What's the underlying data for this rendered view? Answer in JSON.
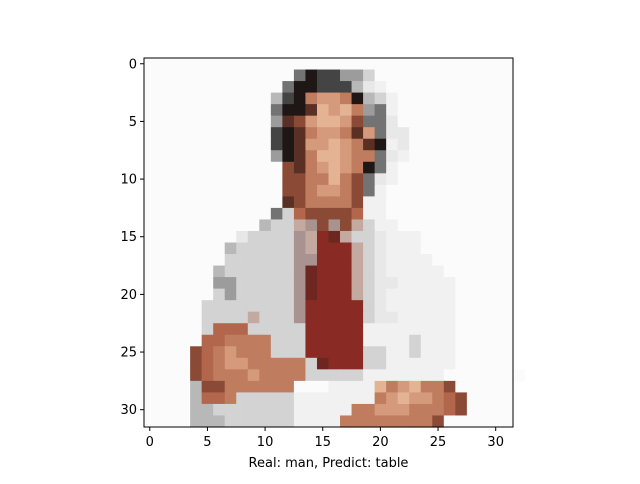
{
  "chart_data": {
    "type": "heatmap",
    "title": "",
    "xlabel": "Real: man, Predict: table",
    "ylabel": "",
    "xlim": [
      -0.5,
      31.5
    ],
    "ylim": [
      31.5,
      -0.5
    ],
    "x_ticks": [
      0,
      5,
      10,
      15,
      20,
      25,
      30
    ],
    "y_ticks": [
      0,
      5,
      10,
      15,
      20,
      25,
      30
    ],
    "x_tick_labels": [
      "0",
      "5",
      "10",
      "15",
      "20",
      "25",
      "30"
    ],
    "y_tick_labels": [
      "0",
      "5",
      "10",
      "15",
      "20",
      "25",
      "30"
    ],
    "grid": false,
    "image_size": [
      32,
      32
    ],
    "palette": {
      "0": "#fbfbfb",
      "1": "#f1f1f1",
      "2": "#e8e8e8",
      "3": "#d3d3d3",
      "4": "#b8b8b8",
      "5": "#9c9c9c",
      "6": "#737373",
      "7": "#444444",
      "8": "#1e1715",
      "9": "#5a2f24",
      "A": "#8a4a36",
      "B": "#bf7c5f",
      "C": "#d59a7c",
      "D": "#e3b394",
      "E": "#8a2a24",
      "F": "#6d2620",
      "G": "#b2674c",
      "H": "#c4a9a0",
      "I": "#a89390"
    },
    "pixels": [
      "00000000000000000000000000000000",
      "00000000000006877553000000000000",
      "00000000000068877742100000000000",
      "00000000000478BCCB84310000000000",
      "000000000006889DCDB5610000000000",
      "0000000000059ACDDCA6620000000000",
      "00000000000789BCCB9C622000000000",
      "00000000000789CCDCB9812000000000",
      "00000000000589BDDCBB621000000000",
      "000000000000A9BCDCB8610000000000",
      "000000000000AABBDBA6210000000000",
      "000000000000AABCCBA6100000000000",
      "0000000000009ABBBBA1100000000000",
      "0000000000063GAAAAG1100000000000",
      "0000000000433HIAIAH3110000000000",
      "0000000023333IHEFH33211100000000",
      "0000000433333IHEEEH3211100000000",
      "0000000333333IIEEEH3211110000000",
      "0000004333333IFEEEH3211111000000",
      "0000005533333IFEEEH3221111100000",
      "0000003533333IFEEEH3211111100000",
      "0000033333333IEEEEE3211111100000",
      "000003333H333IEEEEE3221111100000",
      "000003GGG33333EEEEE1111111100000",
      "00000GGBBBB333EEEEE1111311100000",
      "0000AGBCBBB333EEEEE3311311100000",
      "0000AGBCCBBBBB3FEEE3311111100000",
      "0000AGBBBCBBBB3333311111110000000",
      "00004AABBBBBB0001111DBCDBBA00000",
      "00004GGB333331111111BCDCCBGA0000",
      "000044333333311111BBCCCBBBGA0000",
      "00004443333331111BBBBBBBBA000000"
    ]
  }
}
